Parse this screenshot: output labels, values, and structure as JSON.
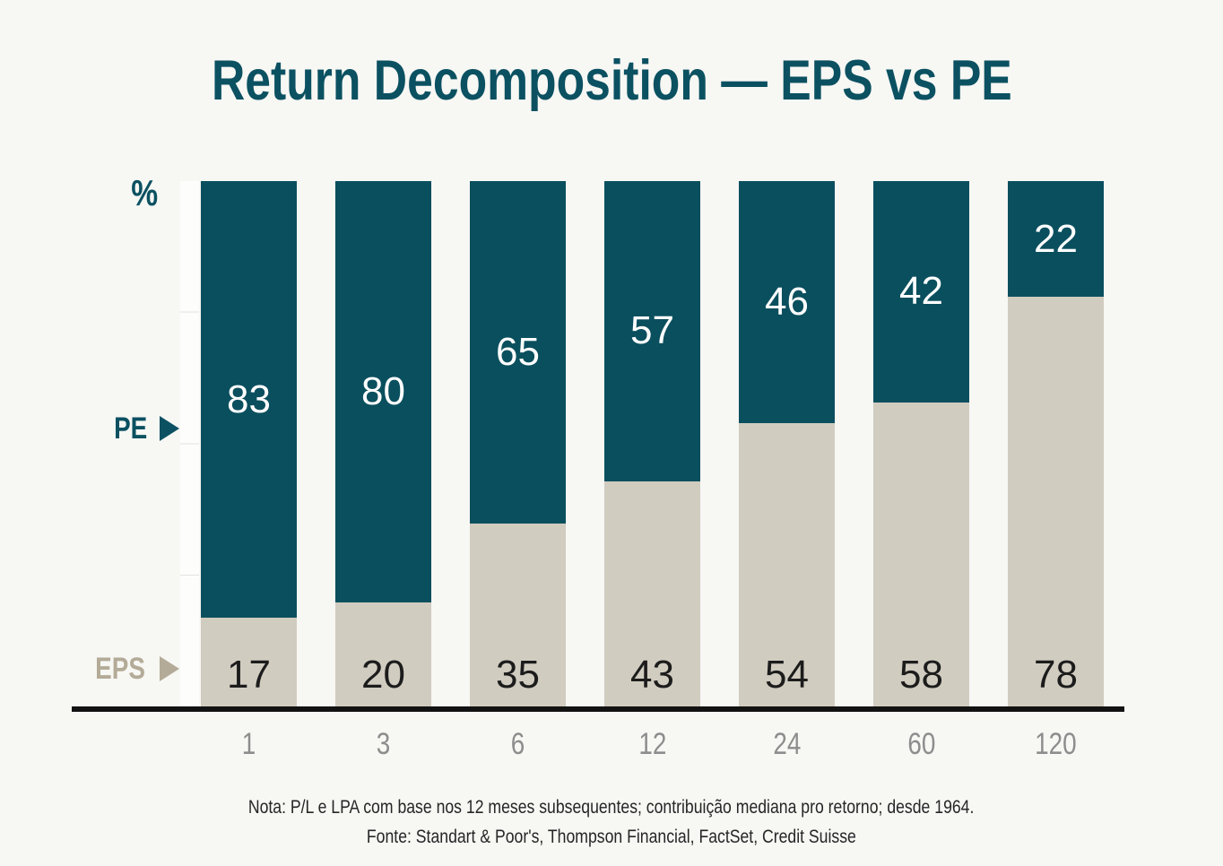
{
  "title": "Return Decomposition — EPS vs PE",
  "y_axis": {
    "unit_label": "%"
  },
  "side_labels": {
    "pe": "PE",
    "eps": "EPS"
  },
  "footer": {
    "note": "Nota: P/L e LPA com base nos 12 meses subsequentes; contribuição mediana pro retorno; desde 1964.",
    "source": "Fonte: Standart & Poor's, Thompson Financial, FactSet, Credit Suisse"
  },
  "colors": {
    "page_bg": "#f7f7f4",
    "title_text": "#0b5161",
    "pe_fill": "#0a4f5e",
    "eps_fill": "#d1ccc0",
    "pe_value_text": "#ffffff",
    "eps_value_text": "#1c1c1c",
    "pe_side_label": "#0b5161",
    "eps_side_label": "#b3ab97",
    "axis_text": "#8d8d8d",
    "baseline": "#121212",
    "footer_text": "#262626"
  },
  "chart_data": {
    "type": "bar",
    "stacked": true,
    "unit": "%",
    "title": "Return Decomposition — EPS vs PE",
    "categories": [
      "1",
      "3",
      "6",
      "12",
      "24",
      "60",
      "120"
    ],
    "series": [
      {
        "name": "EPS",
        "values": [
          17,
          20,
          35,
          43,
          54,
          58,
          78
        ]
      },
      {
        "name": "PE",
        "values": [
          83,
          80,
          65,
          57,
          46,
          42,
          22
        ]
      }
    ],
    "ylim": [
      0,
      100
    ],
    "grid": false,
    "legend_position": "left-arrows"
  }
}
